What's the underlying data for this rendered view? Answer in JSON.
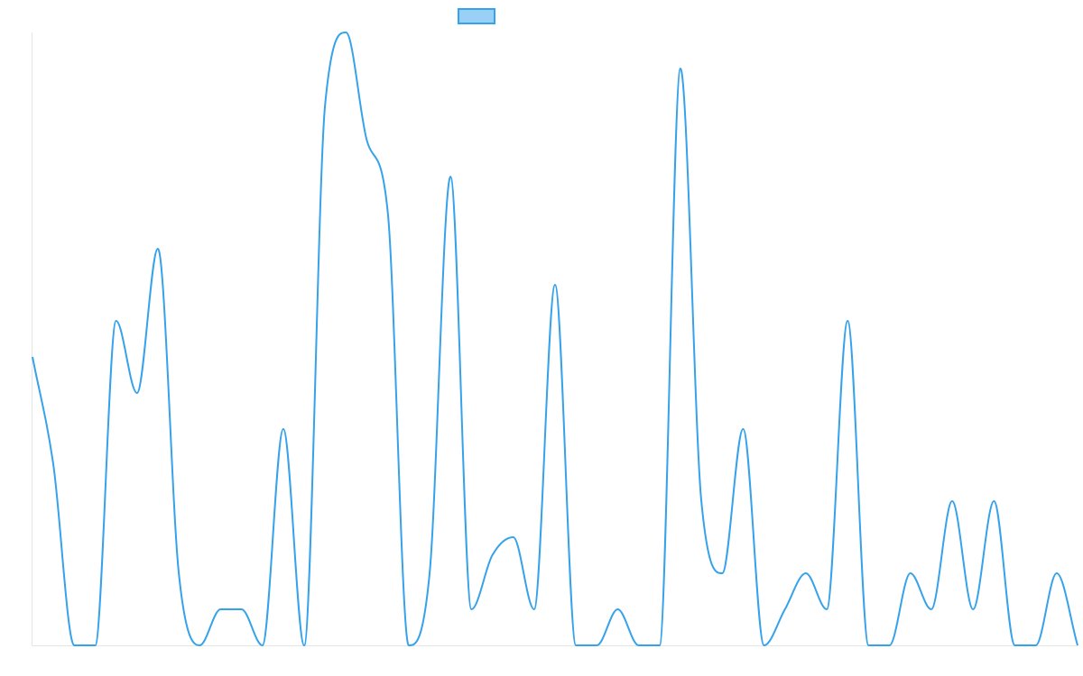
{
  "chart_data": {
    "type": "line",
    "title": "",
    "xlabel": "",
    "ylabel": "",
    "ylim": [
      0,
      17
    ],
    "grid": false,
    "legend_position": "top-center",
    "colors": {
      "line": "#36a2eb",
      "legend_fill": "#9ad0f5",
      "axis": "#e5e5e5"
    },
    "series": [
      {
        "name": "",
        "values": [
          8,
          5,
          0,
          0,
          9,
          7,
          11,
          2,
          0,
          1,
          1,
          0,
          6,
          0,
          15,
          17,
          14,
          12,
          0,
          2,
          13,
          1,
          2.5,
          3,
          1,
          10,
          0,
          0,
          1,
          0,
          0,
          16,
          4,
          2,
          6,
          0,
          1,
          2,
          1,
          9,
          0,
          0,
          2,
          1,
          4,
          1,
          4,
          0,
          0,
          2,
          0
        ]
      }
    ]
  }
}
